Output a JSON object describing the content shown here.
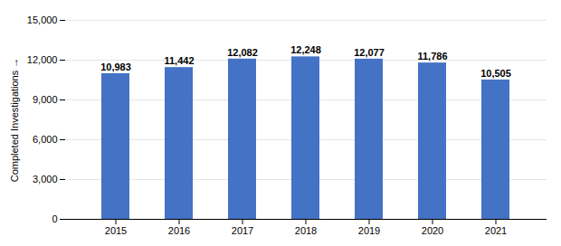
{
  "chart_data": {
    "type": "bar",
    "categories": [
      "2015",
      "2016",
      "2017",
      "2018",
      "2019",
      "2020",
      "2021"
    ],
    "values": [
      10983,
      11442,
      12082,
      12248,
      12077,
      11786,
      10505
    ],
    "value_labels": [
      "10,983",
      "11,442",
      "12,082",
      "12,248",
      "12,077",
      "11,786",
      "10,505"
    ],
    "color": "#4472C4",
    "ylabel": "Completed Investigations",
    "ylim": [
      0,
      15000
    ],
    "yticks": [
      0,
      {
        "value": 3000,
        "label": "3,000"
      },
      {
        "value": 6000,
        "label": "6,000"
      },
      {
        "value": 9000,
        "label": "9,000"
      },
      {
        "value": 12000,
        "label": "12,000"
      },
      {
        "value": 15000,
        "label": "15,000"
      }
    ],
    "grid": true,
    "data_labels": true
  }
}
